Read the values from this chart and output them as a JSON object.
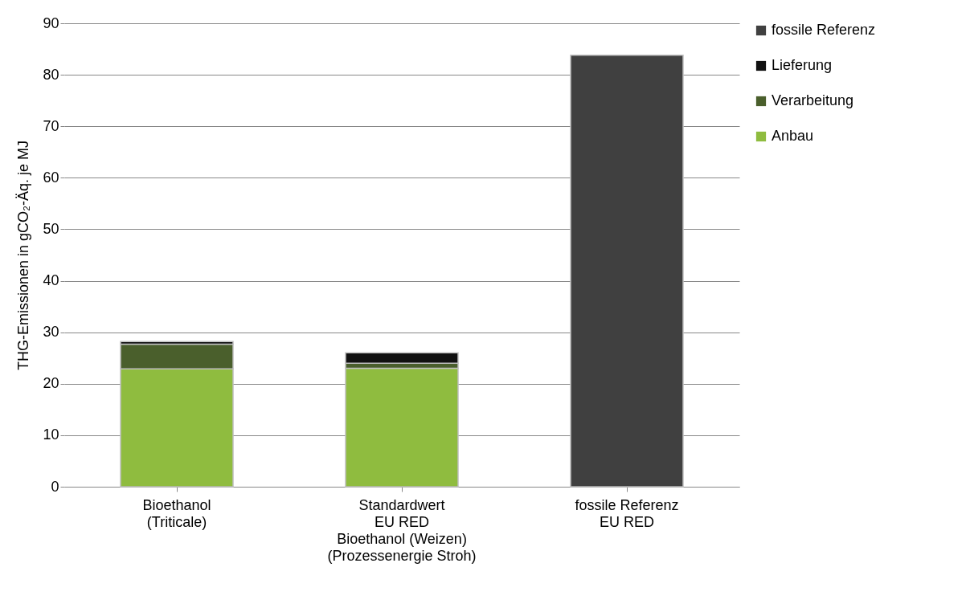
{
  "chart_data": {
    "type": "bar",
    "stacked": true,
    "ylabel": "THG-Emissionen in gCO₂-Äq. je MJ",
    "categories": [
      "Bioethanol\n(Triticale)",
      "Standardwert\nEU RED\nBioethanol (Weizen)\n(Prozessenergie Stroh)",
      "fossile Referenz\nEU RED"
    ],
    "series": [
      {
        "name": "Anbau",
        "color": "#8fbc3f",
        "values": [
          22.9,
          23.0,
          null
        ]
      },
      {
        "name": "Verarbeitung",
        "color": "#4a5f2c",
        "values": [
          4.8,
          1.0,
          null
        ]
      },
      {
        "name": "Lieferung",
        "color": "#111111",
        "values": [
          0.5,
          2.0,
          null
        ]
      },
      {
        "name": "fossile Referenz",
        "color": "#404040",
        "values": [
          null,
          null,
          83.8
        ]
      }
    ],
    "ylim": [
      0,
      90
    ],
    "yticks": [
      0,
      10,
      20,
      30,
      40,
      50,
      60,
      70,
      80,
      90
    ],
    "grid": "y",
    "legend": "right"
  }
}
